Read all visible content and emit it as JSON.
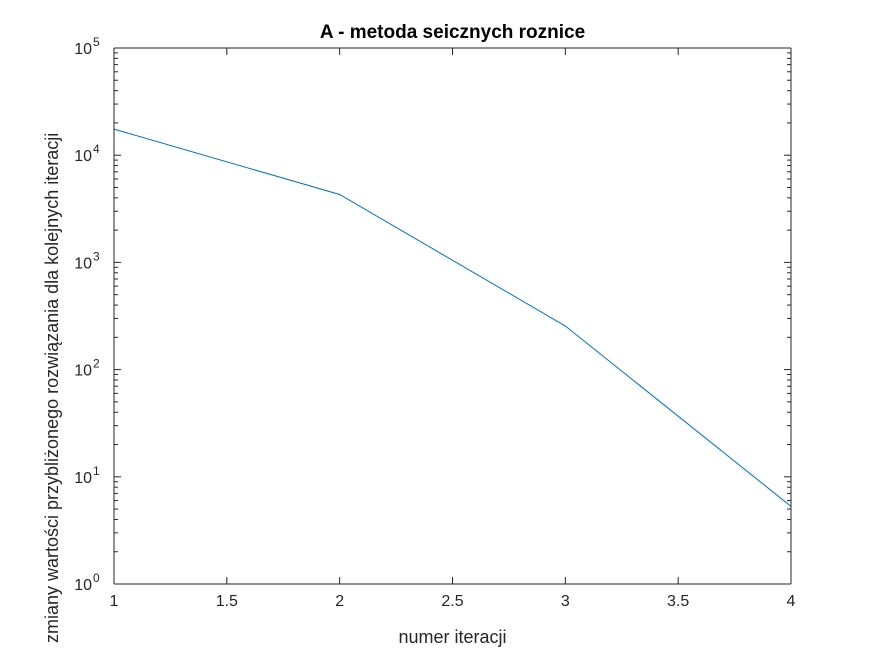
{
  "chart_data": {
    "type": "line",
    "title": "A - metoda seicznych roznice",
    "xlabel": "numer iteracji",
    "ylabel": "zmiany wartości przybliżonego rozwiązania dla kolejnych iteracji",
    "xlim": [
      1,
      4
    ],
    "ylim": [
      1,
      100000
    ],
    "yscale": "log",
    "grid": false,
    "box": true,
    "x_ticks": [
      {
        "value": 1,
        "label": "1"
      },
      {
        "value": 1.5,
        "label": "1.5"
      },
      {
        "value": 2,
        "label": "2"
      },
      {
        "value": 2.5,
        "label": "2.5"
      },
      {
        "value": 3,
        "label": "3"
      },
      {
        "value": 3.5,
        "label": "3.5"
      },
      {
        "value": 4,
        "label": "4"
      }
    ],
    "y_ticks": [
      {
        "value": 1,
        "base": "10",
        "exp": "0"
      },
      {
        "value": 10,
        "base": "10",
        "exp": "1"
      },
      {
        "value": 100,
        "base": "10",
        "exp": "2"
      },
      {
        "value": 1000,
        "base": "10",
        "exp": "3"
      },
      {
        "value": 10000,
        "base": "10",
        "exp": "4"
      },
      {
        "value": 100000,
        "base": "10",
        "exp": "5"
      }
    ],
    "series": [
      {
        "color": "#0072bd",
        "x": [
          1,
          2,
          3,
          4
        ],
        "y": [
          17500,
          4300,
          255,
          5.3
        ]
      }
    ]
  }
}
